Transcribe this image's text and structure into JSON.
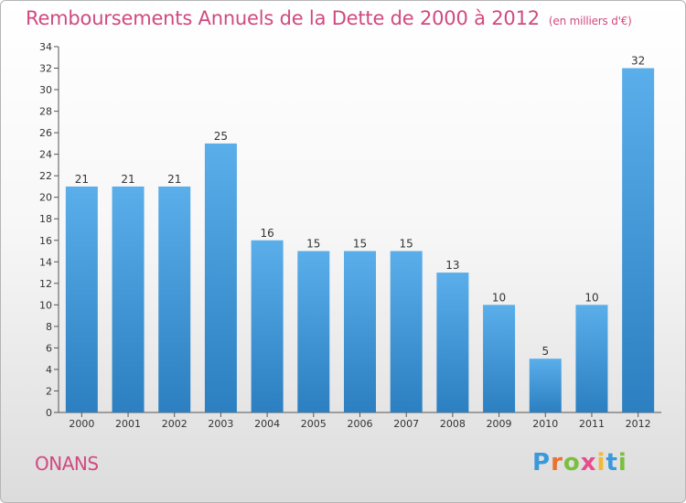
{
  "header": {
    "title": "Remboursements Annuels de la Dette de 2000 à 2012",
    "unit": "(en milliers d'€)"
  },
  "footer": {
    "location": "ONANS",
    "brand": "Proxiti",
    "brand_colors": [
      "#3a9ad9",
      "#e8732f",
      "#7bbf3f",
      "#e84c8b",
      "#f2b933",
      "#3a9ad9",
      "#7bbf3f"
    ]
  },
  "chart_data": {
    "type": "bar",
    "categories": [
      "2000",
      "2001",
      "2002",
      "2003",
      "2004",
      "2005",
      "2006",
      "2007",
      "2008",
      "2009",
      "2010",
      "2011",
      "2012"
    ],
    "values": [
      21,
      21,
      21,
      25,
      16,
      15,
      15,
      15,
      13,
      10,
      5,
      10,
      32
    ],
    "data_labels": [
      "21",
      "21",
      "21",
      "25",
      "16",
      "15",
      "15",
      "15",
      "13",
      "10",
      "5",
      "10",
      "32"
    ],
    "y_ticks": [
      "0",
      "2",
      "4",
      "6",
      "8",
      "10",
      "12",
      "14",
      "16",
      "18",
      "20",
      "22",
      "24",
      "26",
      "28",
      "30",
      "32",
      "34"
    ],
    "ylim": [
      0,
      34
    ],
    "grid": false,
    "bar_color_light": "#5aaeea",
    "bar_color_dark": "#2c7fc0",
    "axis_color": "#555555"
  }
}
